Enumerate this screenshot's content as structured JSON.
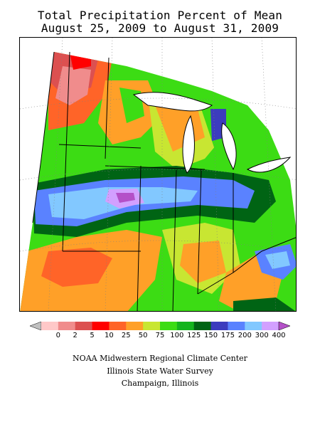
{
  "title": {
    "line1": "Total Precipitation Percent of Mean",
    "line2": "August 25, 2009 to August 31, 2009"
  },
  "legend": {
    "bins": [
      {
        "color": "#c0c0c0"
      },
      {
        "label": "0",
        "color": "#ffc8c8"
      },
      {
        "label": "2",
        "color": "#f08c8c"
      },
      {
        "label": "5",
        "color": "#dc5050"
      },
      {
        "label": "10",
        "color": "#ff0000"
      },
      {
        "label": "25",
        "color": "#ff6428"
      },
      {
        "label": "50",
        "color": "#ffa028"
      },
      {
        "label": "75",
        "color": "#c8e632"
      },
      {
        "label": "100",
        "color": "#3cdc14"
      },
      {
        "label": "125",
        "color": "#14b41e"
      },
      {
        "label": "150",
        "color": "#006414"
      },
      {
        "label": "175",
        "color": "#3c3cbe"
      },
      {
        "label": "200",
        "color": "#5a82ff"
      },
      {
        "label": "300",
        "color": "#82c8ff"
      },
      {
        "label": "400",
        "color": "#d2a0ff"
      },
      {
        "color": "#b450c8"
      }
    ]
  },
  "credits": {
    "line1": "NOAA Midwestern Regional Climate Center",
    "line2": "Illinois State Water Survey",
    "line3": "Champaign, Illinois"
  }
}
